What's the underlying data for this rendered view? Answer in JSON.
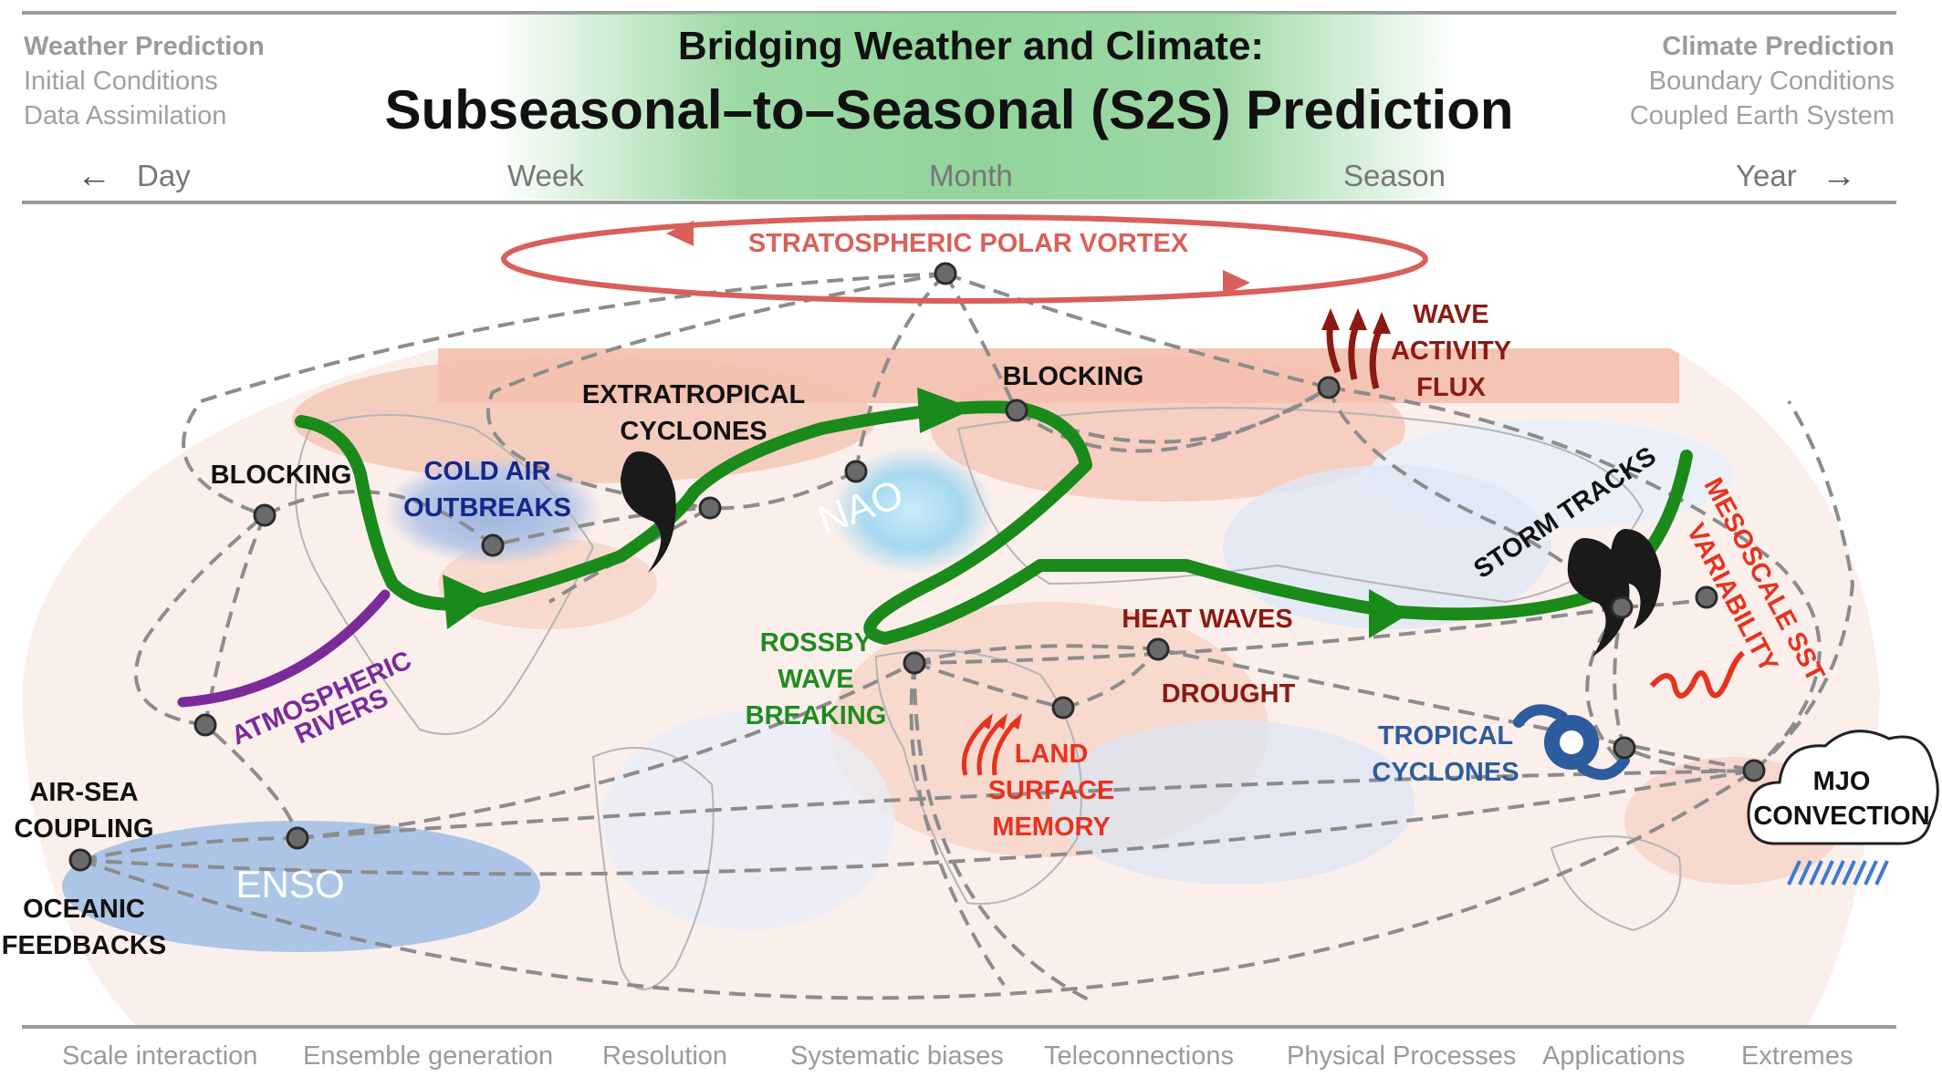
{
  "header": {
    "left": {
      "heading": "Weather Prediction",
      "line1": "Initial Conditions",
      "line2": "Data Assimilation"
    },
    "right": {
      "heading": "Climate Prediction",
      "line1": "Boundary Conditions",
      "line2": "Coupled Earth System"
    },
    "title_line1": "Bridging Weather and Climate:",
    "title_line2": "Subseasonal–to–Seasonal (S2S) Prediction",
    "band_color": "#8fd29c"
  },
  "timescale": {
    "left_arrow": "←",
    "right_arrow": "→",
    "labels": [
      "Day",
      "Week",
      "Month",
      "Season",
      "Year"
    ]
  },
  "diagram": {
    "labels": {
      "polar_vortex": "STRATOSPHERIC POLAR VORTEX",
      "wave_activity_1": "WAVE",
      "wave_activity_2": "ACTIVITY",
      "wave_activity_3": "FLUX",
      "blocking_north": "BLOCKING",
      "blocking_west": "BLOCKING",
      "extratropical_1": "EXTRATROPICAL",
      "extratropical_2": "CYCLONES",
      "cold_air_1": "COLD AIR",
      "cold_air_2": "OUTBREAKS",
      "nao": "NAO",
      "storm_tracks": "STORM TRACKS",
      "mesoscale_1": "MESOSCALE SST",
      "mesoscale_2": "VARIABILITY",
      "atmospheric_1": "ATMOSPHERIC",
      "atmospheric_2": "RIVERS",
      "rossby_1": "ROSSBY",
      "rossby_2": "WAVE",
      "rossby_3": "BREAKING",
      "heat_waves": "HEAT WAVES",
      "drought": "DROUGHT",
      "land_1": "LAND",
      "land_2": "SURFACE",
      "land_3": "MEMORY",
      "tropical_1": "TROPICAL",
      "tropical_2": "CYCLONES",
      "mjo_1": "MJO",
      "mjo_2": "CONVECTION",
      "airsea_1": "AIR-SEA",
      "airsea_2": "COUPLING",
      "enso": "ENSO",
      "oceanic_1": "OCEANIC",
      "oceanic_2": "FEEDBACKS"
    },
    "colors": {
      "vortex": "#d9605a",
      "jet": "#1a8a1a",
      "rivers": "#7a2b99",
      "cold_air": "#16268a",
      "dark_red": "#8b1a12",
      "red": "#e8321e",
      "green_text": "#1f8c1f",
      "tropical": "#2d5c9e",
      "enso": "#9dbde6",
      "network": "#8c8c8c"
    }
  },
  "footer": {
    "items": [
      "Scale interaction",
      "Ensemble generation",
      "Resolution",
      "Systematic biases",
      "Teleconnections",
      "Physical Processes",
      "Applications",
      "Extremes"
    ]
  }
}
